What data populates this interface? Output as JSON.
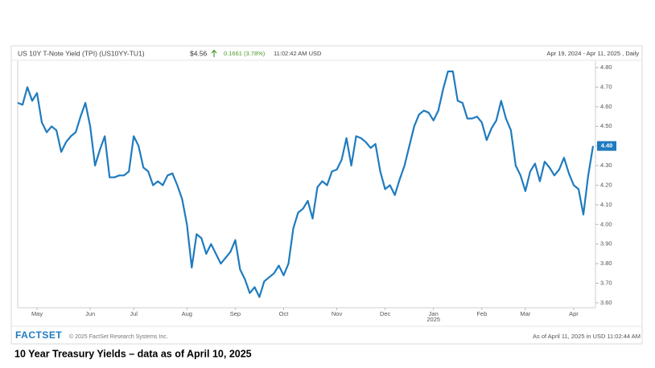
{
  "chart_data": {
    "type": "line",
    "title": "US 10Y T-Note Yield (TPI) (US10YY-TU1)",
    "price": "$4.56",
    "change": "0.1661 (3.78%)",
    "time": "11:02:42 AM USD",
    "range_label": "Apr 19, 2024 - Apr 11, 2025 , Daily",
    "source_logo": "FACTSET",
    "copyright": "© 2025 FactSet Research Systems Inc.",
    "as_of": "As of April 11, 2025 in USD 11:02:44 AM",
    "caption": "10 Year Treasury Yields – data as of April 10, 2025",
    "x_year_label": "2025",
    "color": "#1f7bbf",
    "categories": [
      null,
      null,
      null,
      null,
      "May",
      null,
      null,
      null,
      null,
      null,
      null,
      null,
      null,
      null,
      null,
      "Jun",
      null,
      null,
      null,
      null,
      null,
      null,
      null,
      null,
      "Jul",
      null,
      null,
      null,
      null,
      null,
      null,
      null,
      null,
      null,
      null,
      "Aug",
      null,
      null,
      null,
      null,
      null,
      null,
      null,
      null,
      null,
      "Sep",
      null,
      null,
      null,
      null,
      null,
      null,
      null,
      null,
      null,
      "Oct",
      null,
      null,
      null,
      null,
      null,
      null,
      null,
      null,
      null,
      null,
      "Nov",
      null,
      null,
      null,
      null,
      null,
      null,
      null,
      null,
      null,
      "Dec",
      null,
      null,
      null,
      null,
      null,
      null,
      null,
      null,
      null,
      "Jan",
      null,
      null,
      null,
      null,
      null,
      null,
      null,
      null,
      null,
      "Feb",
      null,
      null,
      null,
      null,
      null,
      null,
      null,
      null,
      "Mar",
      null,
      null,
      null,
      null,
      null,
      null,
      null,
      null,
      null,
      "Apr",
      null,
      null,
      null,
      null
    ],
    "values": [
      4.62,
      4.61,
      4.7,
      4.63,
      4.67,
      4.52,
      4.47,
      4.5,
      4.48,
      4.37,
      4.42,
      4.45,
      4.47,
      4.55,
      4.62,
      4.5,
      4.3,
      4.38,
      4.45,
      4.24,
      4.24,
      4.25,
      4.25,
      4.27,
      4.45,
      4.4,
      4.29,
      4.27,
      4.2,
      4.22,
      4.2,
      4.25,
      4.26,
      4.2,
      4.13,
      4.0,
      3.78,
      3.95,
      3.93,
      3.85,
      3.9,
      3.85,
      3.8,
      3.83,
      3.86,
      3.92,
      3.77,
      3.72,
      3.65,
      3.68,
      3.63,
      3.71,
      3.73,
      3.75,
      3.79,
      3.74,
      3.8,
      3.98,
      4.06,
      4.08,
      4.12,
      4.03,
      4.19,
      4.22,
      4.2,
      4.27,
      4.28,
      4.33,
      4.44,
      4.3,
      4.45,
      4.44,
      4.42,
      4.39,
      4.41,
      4.27,
      4.18,
      4.2,
      4.15,
      4.23,
      4.3,
      4.4,
      4.5,
      4.56,
      4.58,
      4.57,
      4.53,
      4.58,
      4.69,
      4.78,
      4.78,
      4.63,
      4.62,
      4.54,
      4.54,
      4.55,
      4.52,
      4.43,
      4.49,
      4.53,
      4.63,
      4.54,
      4.48,
      4.3,
      4.25,
      4.17,
      4.27,
      4.31,
      4.22,
      4.32,
      4.29,
      4.25,
      4.28,
      4.34,
      4.26,
      4.2,
      4.18,
      4.05,
      4.25,
      4.4
    ],
    "last_label": "4.40",
    "ylim": [
      3.575,
      4.833
    ],
    "yticks": [
      {
        "value": 3.6,
        "label": "3.60"
      },
      {
        "value": 3.7,
        "label": "3.70"
      },
      {
        "value": 3.8,
        "label": "3.80"
      },
      {
        "value": 3.9,
        "label": "3.90"
      },
      {
        "value": 4.0,
        "label": "4.00"
      },
      {
        "value": 4.1,
        "label": "4.10"
      },
      {
        "value": 4.2,
        "label": "4.20"
      },
      {
        "value": 4.3,
        "label": "4.30"
      },
      {
        "value": 4.4,
        "label": "4.40"
      },
      {
        "value": 4.5,
        "label": "4.50"
      },
      {
        "value": 4.6,
        "label": "4.60"
      },
      {
        "value": 4.7,
        "label": "4.70"
      },
      {
        "value": 4.8,
        "label": "4.80"
      }
    ]
  }
}
